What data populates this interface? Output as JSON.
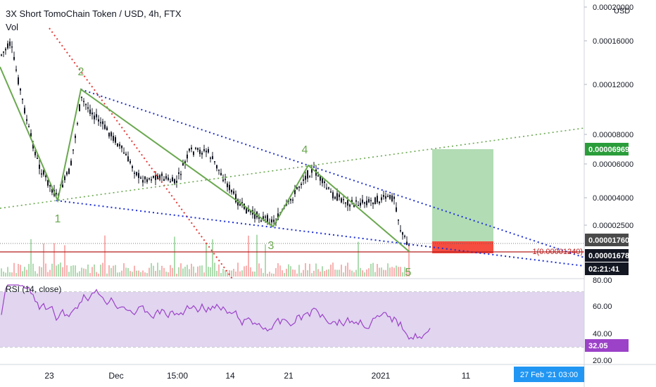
{
  "header": {
    "title": "3X Short TomoChain Token / USD, 4h, FTX",
    "volume_label": "Vol",
    "currency": "USD",
    "rsi_label": "RSI (14, close)"
  },
  "chart_data": {
    "type": "line",
    "title": "3X Short TomoChain Token / USD, 4h, FTX",
    "x_ticks": [
      "23",
      "Dec",
      "15:00",
      "14",
      "21",
      "2021",
      "11"
    ],
    "x_cursor_label": "27 Feb '21   03:00",
    "y_ticks": [
      "0.00020000",
      "0.00016000",
      "0.00012000",
      "0.00008000",
      "0.00006000",
      "0.00004000",
      "0.00002500"
    ],
    "price_labels": {
      "target": "0.00006969",
      "current": "0.00001760",
      "last": "0.00001678",
      "countdown": "02:21:41",
      "horizontal_line": "1(0.00001240)"
    },
    "wave_labels": [
      "1",
      "2",
      "3",
      "4",
      "5"
    ],
    "colors": {
      "candle": "#131722",
      "wave": "#6aa84f",
      "trendline_blue": "#1d2fd6",
      "trendline_red": "#e53935",
      "trendline_green": "#6aa84f",
      "profit_zone": "#a5d6a7",
      "loss_zone": "#f44336",
      "target_tag": "#2a9d3a",
      "rsi_line": "#9c42c8",
      "rsi_band": "#e1d5f0",
      "cursor_tag": "#2196f3"
    },
    "rsi": {
      "ticks": [
        "80.00",
        "60.00",
        "40.00",
        "20.00"
      ],
      "current": "32.05",
      "band": [
        30,
        70
      ]
    }
  }
}
